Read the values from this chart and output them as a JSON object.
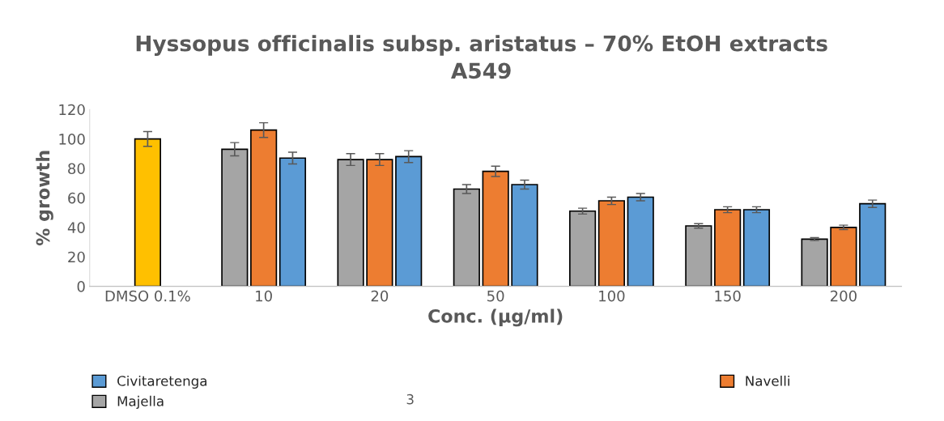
{
  "chart_data": {
    "type": "bar",
    "title": "Hyssopus officinalis subsp. aristatus – 70% EtOH extracts\nA549",
    "xlabel": "Conc. (µg/ml)",
    "ylabel": "% growth",
    "categories": [
      "DMSO 0.1%",
      "10",
      "20",
      "50",
      "100",
      "150",
      "200"
    ],
    "series": [
      {
        "name": "Majella",
        "color": "#a5a5a5",
        "values": [
          null,
          93,
          86,
          66,
          51,
          41,
          32
        ],
        "errors": [
          null,
          4.5,
          4,
          3,
          2,
          1.5,
          1
        ]
      },
      {
        "name": "Navelli",
        "color": "#ed7d31",
        "colors": [
          "#ffc000",
          "#ed7d31",
          "#ed7d31",
          "#ed7d31",
          "#ed7d31",
          "#ed7d31",
          "#ed7d31"
        ],
        "values": [
          100,
          106,
          86,
          78,
          58,
          52,
          40
        ],
        "errors": [
          5,
          5,
          4,
          3.5,
          2.5,
          2,
          1.5
        ]
      },
      {
        "name": "Civitaretenga",
        "color": "#5b9bd5",
        "values": [
          null,
          87,
          88,
          69,
          60.5,
          52,
          56
        ],
        "errors": [
          null,
          4,
          4,
          3,
          2.5,
          2,
          2.5
        ]
      }
    ],
    "ylim": [
      0,
      120
    ],
    "yticks": [
      0,
      20,
      40,
      60,
      80,
      100,
      120
    ],
    "grid": false,
    "legend": "bottom",
    "annotations": [
      "3"
    ]
  }
}
